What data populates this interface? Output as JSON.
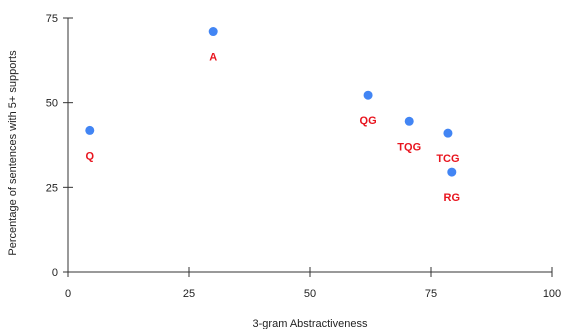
{
  "chart_data": {
    "type": "scatter",
    "title": "",
    "xlabel": "3-gram Abstractiveness",
    "ylabel": "Percentage of sentences with 5+ supports",
    "xlim": [
      0,
      100
    ],
    "ylim": [
      0,
      75
    ],
    "x_ticks": [
      0,
      25,
      50,
      75,
      100
    ],
    "y_ticks": [
      0,
      25,
      50,
      75
    ],
    "grid": false,
    "legend": "none",
    "point_color": "#4285F4",
    "label_color": "#E8141E",
    "points": [
      {
        "label": "Q",
        "x": 4.5,
        "y": 41.8
      },
      {
        "label": "A",
        "x": 30.0,
        "y": 71.0
      },
      {
        "label": "QG",
        "x": 62.0,
        "y": 52.2
      },
      {
        "label": "TQG",
        "x": 70.5,
        "y": 44.5
      },
      {
        "label": "TCG",
        "x": 78.5,
        "y": 41.0
      },
      {
        "label": "RG",
        "x": 79.3,
        "y": 29.5
      }
    ]
  }
}
